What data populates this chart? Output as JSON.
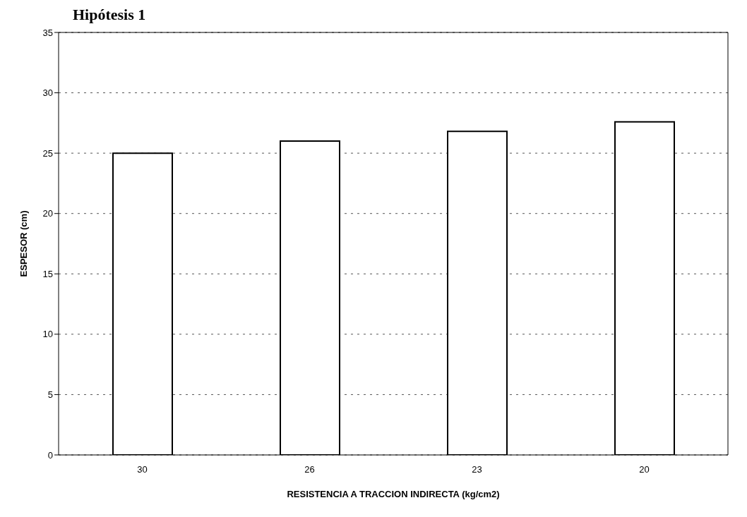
{
  "chart_data": {
    "type": "bar",
    "title": "Hipótesis 1",
    "xlabel": "RESISTENCIA A TRACCION INDIRECTA (kg/cm2)",
    "ylabel": "ESPESOR (cm)",
    "categories": [
      "30",
      "26",
      "23",
      "20"
    ],
    "values": [
      25,
      26,
      26.8,
      27.6
    ],
    "color": "#ffffff",
    "ylim": [
      0,
      35
    ],
    "yticks": [
      0,
      5,
      10,
      15,
      20,
      25,
      30,
      35
    ],
    "grid": "y"
  }
}
